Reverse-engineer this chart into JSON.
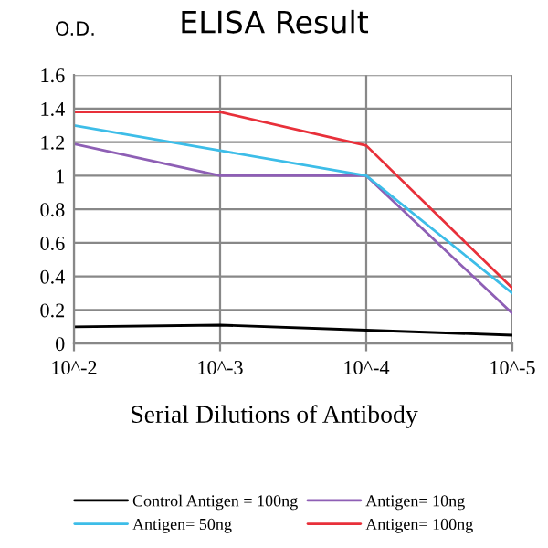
{
  "chart_data": {
    "type": "line",
    "title": "ELISA Result",
    "ylabel": "O.D.",
    "xlabel": "Serial Dilutions of Antibody",
    "categories": [
      "10^-2",
      "10^-3",
      "10^-4",
      "10^-5"
    ],
    "series": [
      {
        "name": "Control Antigen = 100ng",
        "color": "#000000",
        "values": [
          0.1,
          0.11,
          0.08,
          0.05
        ]
      },
      {
        "name": "Antigen= 10ng",
        "color": "#8e5fb5",
        "values": [
          1.19,
          1.0,
          1.0,
          0.18
        ]
      },
      {
        "name": "Antigen= 50ng",
        "color": "#3dbde8",
        "values": [
          1.3,
          1.15,
          1.0,
          0.3
        ]
      },
      {
        "name": "Antigen= 100ng",
        "color": "#e8303a",
        "values": [
          1.38,
          1.38,
          1.18,
          0.33
        ]
      }
    ],
    "ylim": [
      0,
      1.6
    ],
    "yticks": [
      0,
      0.2,
      0.4,
      0.6,
      0.8,
      1,
      1.2,
      1.4,
      1.6
    ],
    "grid": true,
    "legend": "bottom",
    "marker": "none",
    "line_style": "solid"
  }
}
